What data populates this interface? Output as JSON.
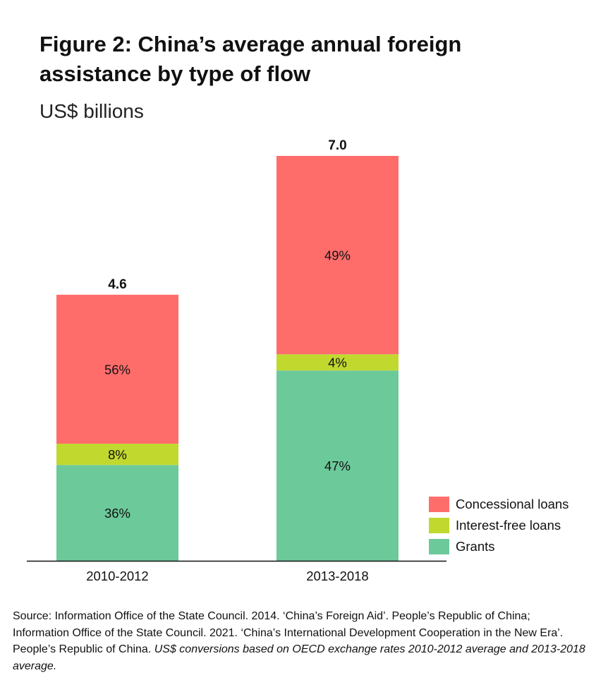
{
  "chart_data": {
    "type": "bar",
    "stacked": true,
    "title": "Figure 2: China’s average annual foreign assistance by type of flow",
    "subtitle": "US$ billions",
    "categories": [
      "2010-2012",
      "2013-2018"
    ],
    "totals": [
      4.6,
      7.0
    ],
    "total_labels": [
      "4.6",
      "7.0"
    ],
    "series": [
      {
        "name": "Grants",
        "color": "#6CC99A",
        "shares": [
          0.36,
          0.47
        ],
        "labels": [
          "36%",
          "47%"
        ]
      },
      {
        "name": "Interest-free loans",
        "color": "#C1D82F",
        "shares": [
          0.08,
          0.04
        ],
        "labels": [
          "8%",
          "4%"
        ]
      },
      {
        "name": "Concessional loans",
        "color": "#FF6D6B",
        "shares": [
          0.56,
          0.49
        ],
        "labels": [
          "56%",
          "49%"
        ]
      }
    ],
    "legend": {
      "position": "bottom-right",
      "order": [
        "Concessional loans",
        "Interest-free loans",
        "Grants"
      ]
    },
    "ylim": [
      0,
      7.0
    ],
    "grid": false
  },
  "legend": {
    "items": [
      {
        "label": "Concessional loans",
        "color": "#FF6D6B"
      },
      {
        "label": "Interest-free loans",
        "color": "#C1D82F"
      },
      {
        "label": "Grants",
        "color": "#6CC99A"
      }
    ]
  },
  "source": {
    "text": "Source: Information Office of the State Council. 2014. ‘China’s Foreign Aid’. People’s Republic of China; Information Office of the State Council. 2021. ‘China’s International Development Cooperation in the New Era’. People’s Republic of China. ",
    "note": "US$ conversions based on OECD exchange rates 2010-2012 average and 2013-2018 average."
  }
}
